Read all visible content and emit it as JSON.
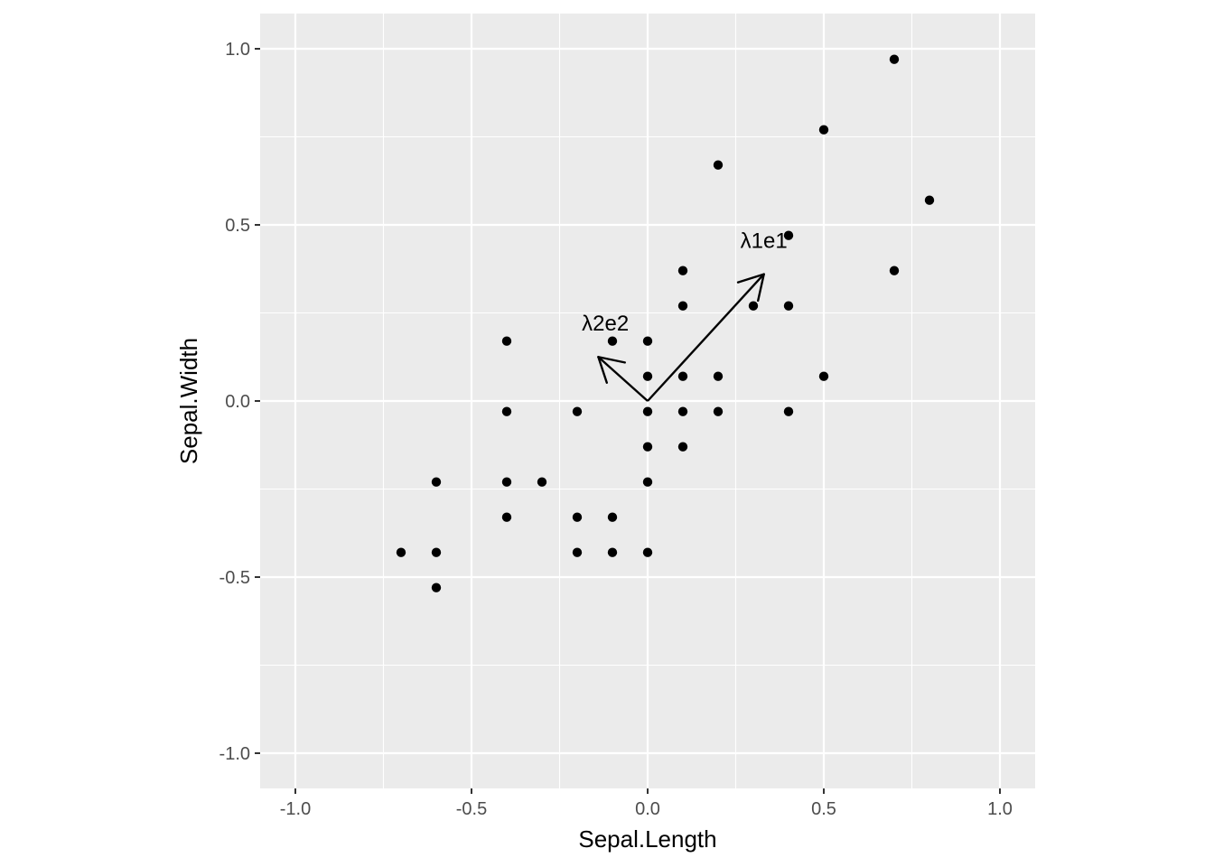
{
  "chart_data": {
    "type": "scatter",
    "title": "",
    "xlabel": "Sepal.Length",
    "ylabel": "Sepal.Width",
    "xlim": [
      -1.1,
      1.1
    ],
    "ylim": [
      -1.1,
      1.1
    ],
    "x_ticks": [
      -1.0,
      -0.5,
      0.0,
      0.5,
      1.0
    ],
    "y_ticks": [
      -1.0,
      -0.5,
      0.0,
      0.5,
      1.0
    ],
    "x_tick_labels": [
      "-1.0",
      "-0.5",
      "0.0",
      "0.5",
      "1.0"
    ],
    "y_tick_labels": [
      "-1.0",
      "-0.5",
      "0.0",
      "0.5",
      "1.0"
    ],
    "grid": true,
    "legend": "none",
    "colors": {
      "panel": "#ebebeb",
      "grid": "#ffffff",
      "point": "#000000"
    },
    "points": [
      [
        0.7,
        0.97
      ],
      [
        0.5,
        0.77
      ],
      [
        0.2,
        0.67
      ],
      [
        0.8,
        0.57
      ],
      [
        0.4,
        0.47
      ],
      [
        0.7,
        0.37
      ],
      [
        0.1,
        0.37
      ],
      [
        0.1,
        0.27
      ],
      [
        0.3,
        0.27
      ],
      [
        0.4,
        0.27
      ],
      [
        -0.4,
        0.17
      ],
      [
        -0.1,
        0.17
      ],
      [
        0.0,
        0.17
      ],
      [
        0.0,
        0.07
      ],
      [
        0.1,
        0.07
      ],
      [
        0.2,
        0.07
      ],
      [
        0.5,
        0.07
      ],
      [
        -0.4,
        -0.03
      ],
      [
        -0.2,
        -0.03
      ],
      [
        0.0,
        -0.03
      ],
      [
        0.1,
        -0.03
      ],
      [
        0.2,
        -0.03
      ],
      [
        0.4,
        -0.03
      ],
      [
        0.0,
        -0.13
      ],
      [
        0.1,
        -0.13
      ],
      [
        -0.6,
        -0.23
      ],
      [
        -0.4,
        -0.23
      ],
      [
        -0.3,
        -0.23
      ],
      [
        0.0,
        -0.23
      ],
      [
        -0.4,
        -0.33
      ],
      [
        -0.2,
        -0.33
      ],
      [
        -0.1,
        -0.33
      ],
      [
        -0.7,
        -0.43
      ],
      [
        -0.6,
        -0.43
      ],
      [
        -0.2,
        -0.43
      ],
      [
        -0.1,
        -0.43
      ],
      [
        0.0,
        -0.43
      ],
      [
        -0.6,
        -0.53
      ]
    ],
    "vectors": [
      {
        "label": "λ1e1",
        "x": 0.33,
        "y": 0.36
      },
      {
        "label": "λ2e2",
        "x": -0.14,
        "y": 0.125
      }
    ]
  }
}
